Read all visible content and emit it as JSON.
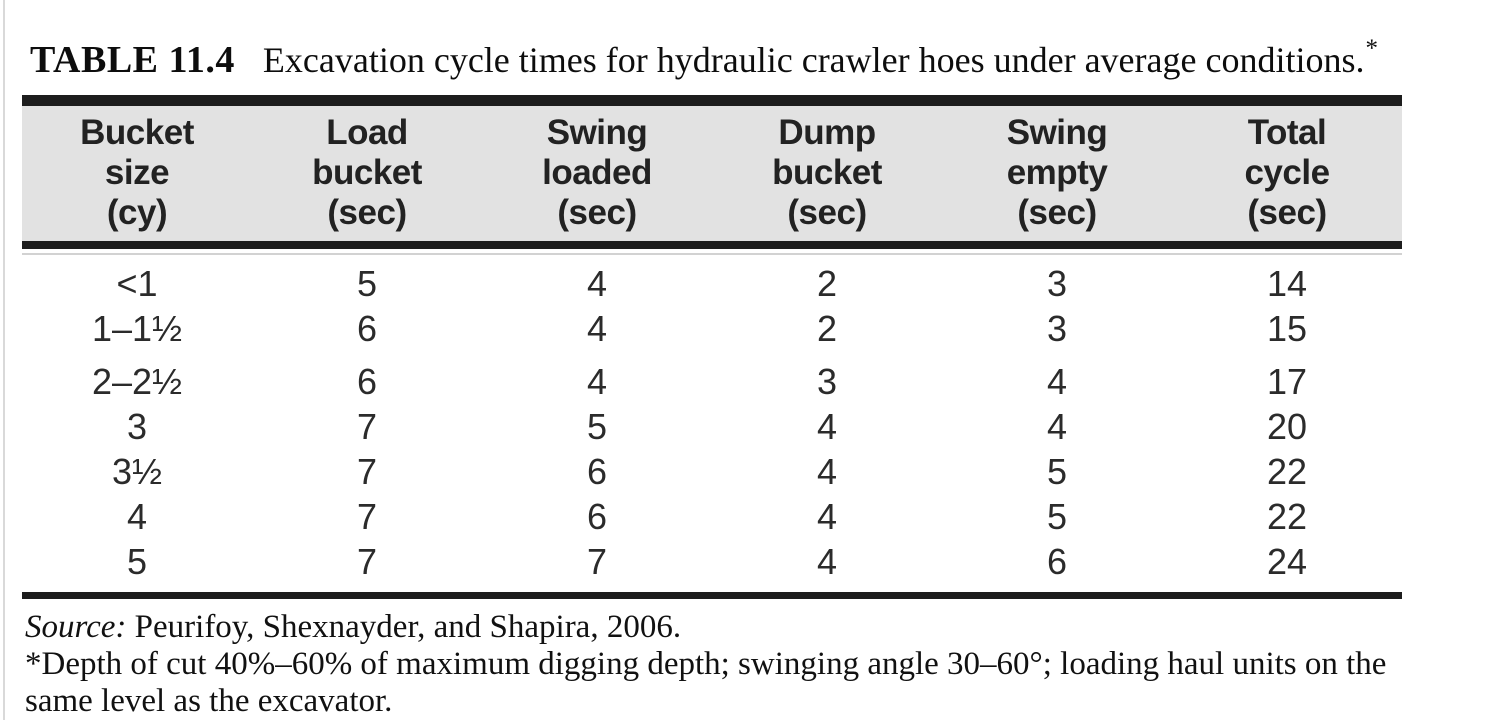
{
  "title": {
    "label": "TABLE 11.4",
    "text": "Excavation cycle times for hydraulic crawler hoes under average conditions.",
    "asterisk": "*"
  },
  "table": {
    "columns": [
      {
        "l1": "Bucket",
        "l2": "size",
        "l3": "(cy)"
      },
      {
        "l1": "Load",
        "l2": "bucket",
        "l3": "(sec)"
      },
      {
        "l1": "Swing",
        "l2": "loaded",
        "l3": "(sec)"
      },
      {
        "l1": "Dump",
        "l2": "bucket",
        "l3": "(sec)"
      },
      {
        "l1": "Swing",
        "l2": "empty",
        "l3": "(sec)"
      },
      {
        "l1": "Total",
        "l2": "cycle",
        "l3": "(sec)"
      }
    ],
    "rows": [
      [
        "<1",
        "5",
        "4",
        "2",
        "3",
        "14"
      ],
      [
        "1–1½",
        "6",
        "4",
        "2",
        "3",
        "15"
      ],
      [
        "2–2½",
        "6",
        "4",
        "3",
        "4",
        "17"
      ],
      [
        "3",
        "7",
        "5",
        "4",
        "4",
        "20"
      ],
      [
        "3½",
        "7",
        "6",
        "4",
        "5",
        "22"
      ],
      [
        "4",
        "7",
        "6",
        "4",
        "5",
        "22"
      ],
      [
        "5",
        "7",
        "7",
        "4",
        "6",
        "24"
      ]
    ]
  },
  "footer": {
    "source_label": "Source:",
    "source_text": " Peurifoy, Shexnayder, and Shapira, 2006.",
    "footnote_line1": "*Depth of cut 40%–60% of maximum digging depth; swinging angle 30–60°; loading haul units on the",
    "footnote_line2": "same level as the excavator."
  },
  "colors": {
    "header_bg": "#e2e2e2",
    "rule": "#1d1d1d",
    "text": "#1a1a1a"
  }
}
